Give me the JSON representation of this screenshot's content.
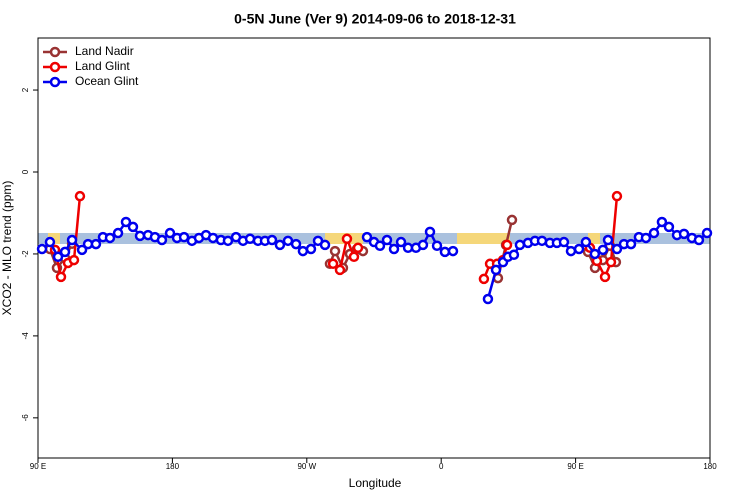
{
  "chart_data": {
    "type": "line",
    "title": "0-5N June (Ver 9)   2014-09-06 to 2018-12-31",
    "xlabel": "Longitude",
    "ylabel": "XCO2 - MLO trend (ppm)",
    "xlim": [
      90,
      540
    ],
    "ylim": [
      -6.98,
      3.27
    ],
    "xticks": [
      {
        "value": 90,
        "label": "90 E"
      },
      180,
      {
        "value": 270,
        "label": "90 W"
      },
      {
        "value": 360,
        "label": "0"
      },
      {
        "value": 450,
        "label": "90 E"
      },
      {
        "value": 540,
        "label": "180"
      }
    ],
    "yticks": [
      -6,
      -4,
      -2,
      0,
      2
    ],
    "legend": "upper left",
    "series": [
      {
        "name": "Land Nadir",
        "color": "#993333",
        "x": [
          98.0,
          102.7,
          108.1,
          112.8,
          null,
          285.5,
          288.9,
          294.2,
          298.9,
          303.6,
          307.6,
          null,
          398.0,
          403.4,
          407.4,
          null,
          458.3,
          463.0,
          468.3,
          473.0,
          477.0
        ],
        "values": [
          -1.88,
          -2.34,
          -2.1,
          -1.75,
          null,
          -2.24,
          -1.93,
          -2.34,
          -2.0,
          -1.88,
          -1.93,
          null,
          -2.59,
          -1.78,
          -1.17,
          null,
          -1.95,
          -2.34,
          -2.15,
          -1.8,
          -2.2
        ]
      },
      {
        "name": "Land Glint",
        "color": "#ee0000",
        "x": [
          101.4,
          105.4,
          110.1,
          114.1,
          118.1,
          null,
          287.6,
          292.2,
          296.9,
          301.6,
          304.3,
          null,
          388.6,
          392.7,
          397.4,
          401.4,
          404.1,
          null,
          459.6,
          464.3,
          469.7,
          473.7,
          477.7
        ],
        "values": [
          -1.9,
          -2.56,
          -2.22,
          -2.15,
          -0.59,
          null,
          -2.24,
          -2.39,
          -1.63,
          -2.07,
          -1.85,
          null,
          -2.61,
          -2.24,
          -2.24,
          -2.15,
          -1.78,
          null,
          -1.85,
          -2.17,
          -2.56,
          -2.2,
          -0.59
        ]
      },
      {
        "name": "Ocean Glint",
        "color": "#0000ee",
        "x": [
          92.7,
          98.0,
          103.4,
          108.1,
          112.8,
          119.5,
          123.5,
          128.8,
          133.5,
          138.2,
          143.6,
          148.9,
          153.6,
          158.3,
          163.7,
          168.3,
          173.0,
          178.4,
          183.1,
          187.8,
          193.1,
          197.8,
          202.5,
          207.2,
          212.5,
          217.2,
          222.6,
          227.3,
          232.0,
          237.3,
          242.0,
          246.7,
          252.0,
          257.4,
          262.8,
          267.4,
          272.8,
          277.5,
          282.2,
          null,
          310.3,
          315.0,
          319.0,
          323.7,
          328.4,
          333.1,
          337.8,
          343.1,
          347.8,
          352.5,
          357.2,
          362.5,
          367.9,
          null,
          391.3,
          396.7,
          401.4,
          404.7,
          408.7,
          412.7,
          418.1,
          422.8,
          427.5,
          432.8,
          437.5,
          442.2,
          446.9,
          452.3,
          456.9,
          462.9,
          468.3,
          471.7,
          477.7,
          482.4,
          487.1,
          492.4,
          497.1,
          502.5,
          507.8,
          512.5,
          517.9,
          522.6,
          527.9,
          532.6,
          538.0
        ],
        "values": [
          -1.88,
          -1.71,
          -2.07,
          -1.95,
          -1.66,
          -1.9,
          -1.76,
          -1.76,
          -1.59,
          -1.61,
          -1.49,
          -1.22,
          -1.34,
          -1.56,
          -1.54,
          -1.59,
          -1.66,
          -1.49,
          -1.61,
          -1.59,
          -1.68,
          -1.61,
          -1.54,
          -1.61,
          -1.66,
          -1.68,
          -1.59,
          -1.68,
          -1.63,
          -1.68,
          -1.68,
          -1.66,
          -1.78,
          -1.68,
          -1.76,
          -1.93,
          -1.88,
          -1.68,
          -1.78,
          null,
          -1.59,
          -1.71,
          -1.8,
          -1.66,
          -1.88,
          -1.71,
          -1.85,
          -1.85,
          -1.78,
          -1.46,
          -1.8,
          -1.95,
          -1.93,
          null,
          -3.1,
          -2.39,
          -2.2,
          -2.07,
          -2.02,
          -1.78,
          -1.73,
          -1.68,
          -1.68,
          -1.73,
          -1.73,
          -1.71,
          -1.93,
          -1.88,
          -1.71,
          -2.0,
          -1.9,
          -1.66,
          -1.88,
          -1.76,
          -1.76,
          -1.59,
          -1.61,
          -1.49,
          -1.22,
          -1.34,
          -1.54,
          -1.51,
          -1.61,
          -1.66,
          -1.49
        ]
      }
    ]
  }
}
